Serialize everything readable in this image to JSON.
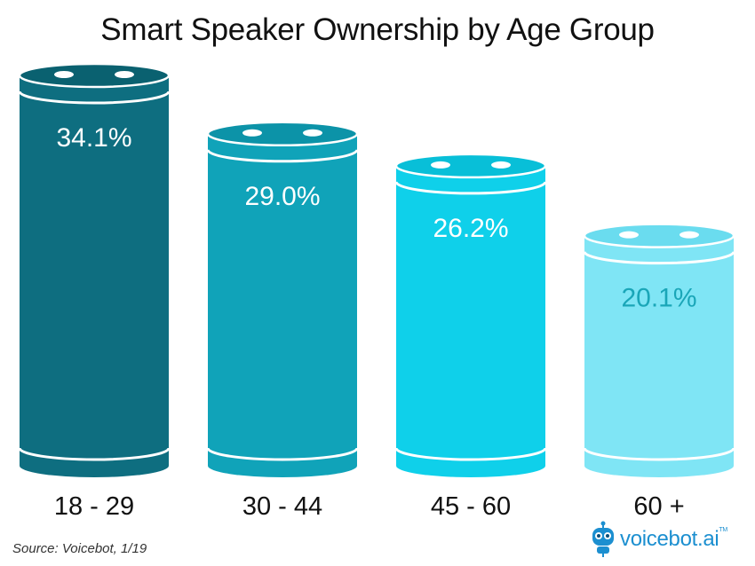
{
  "chart_data": {
    "type": "bar",
    "title": "Smart Speaker Ownership by Age Group",
    "categories": [
      "18 - 29",
      "30 - 44",
      "45 - 60",
      "60 +"
    ],
    "values": [
      34.1,
      29.0,
      26.2,
      20.1
    ],
    "value_labels": [
      "34.1%",
      "29.0%",
      "26.2%",
      "20.1%"
    ],
    "bar_colors": [
      "#0e6e80",
      "#10a3b9",
      "#0fd0ea",
      "#7fe5f5"
    ],
    "bar_top_colors": [
      "#0a6170",
      "#0c93a8",
      "#08bfd8",
      "#6adcef"
    ],
    "label_colors": [
      "#ffffff",
      "#ffffff",
      "#ffffff",
      "#1aa6b8"
    ],
    "xlabel": "",
    "ylabel": "",
    "ylim": [
      0,
      34.1
    ],
    "grid": false,
    "legend": "none"
  },
  "source": "Source: Voicebot, 1/19",
  "logo": {
    "name": "voicebot",
    "suffix": ".ai",
    "tm": "TM"
  }
}
